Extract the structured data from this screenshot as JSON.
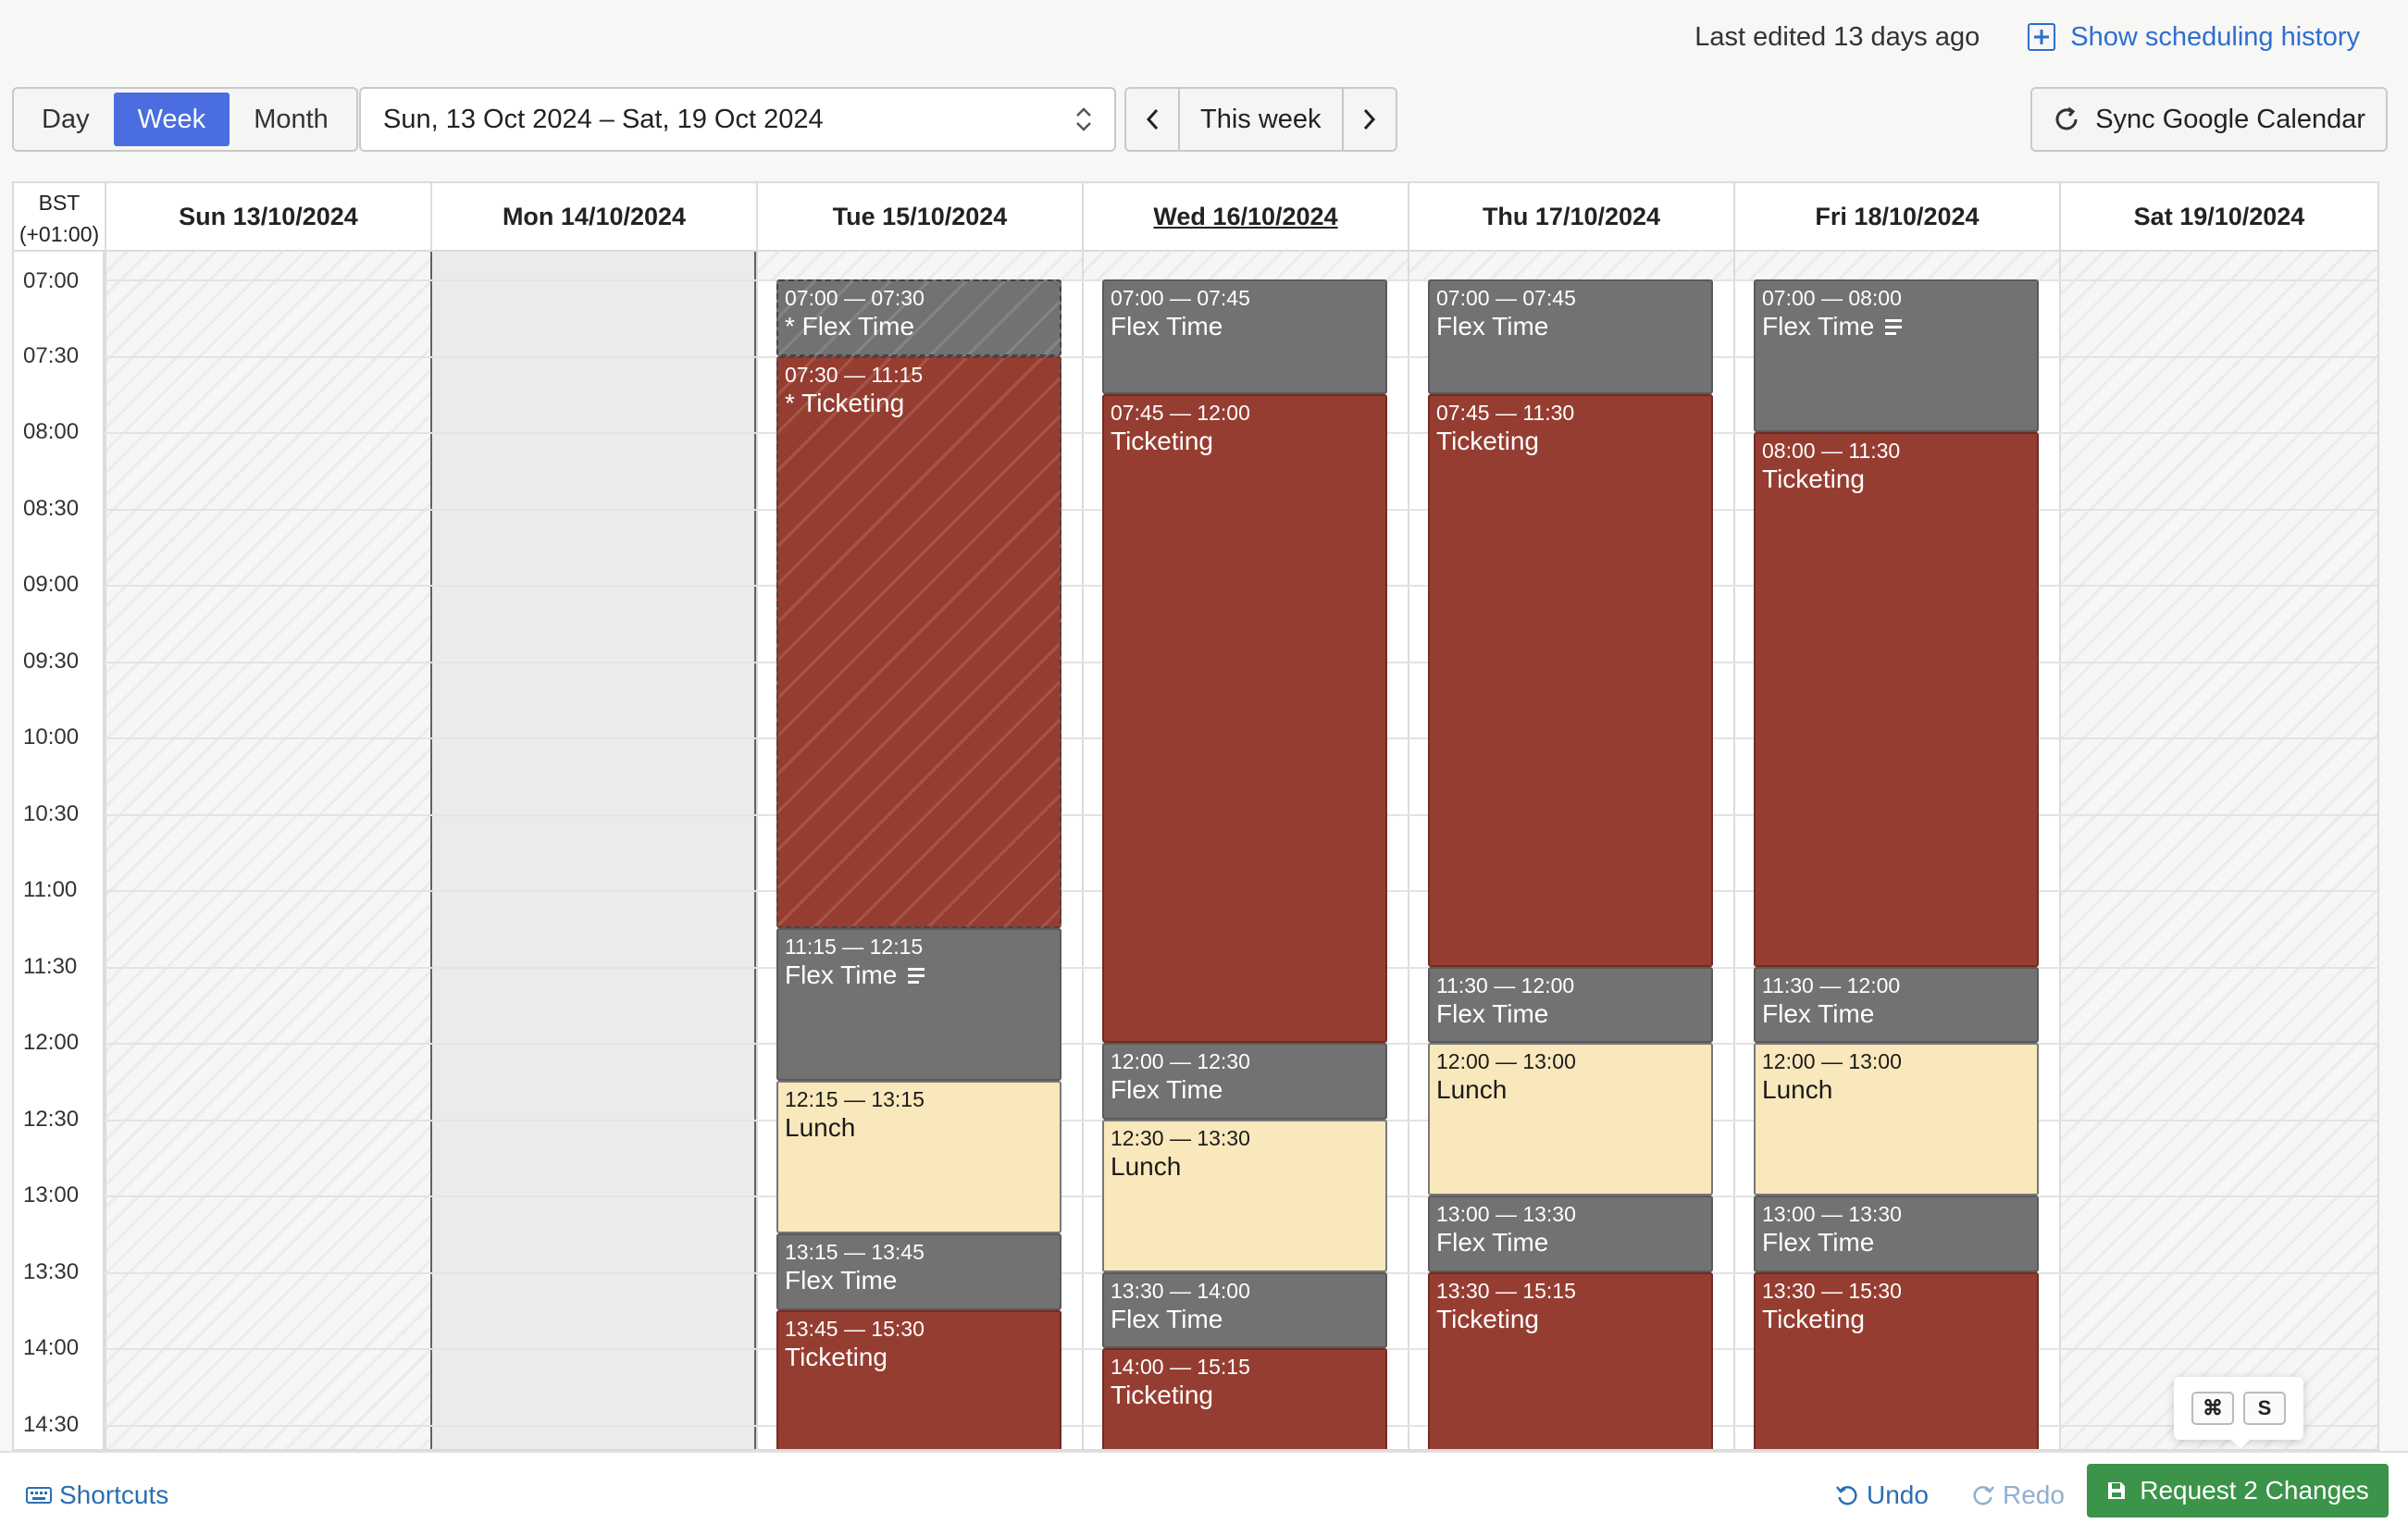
{
  "header": {
    "last_edited": "Last edited 13 days ago",
    "history_link": "Show scheduling history",
    "history_icon": "plus-square-icon"
  },
  "toolbar": {
    "views": [
      "Day",
      "Week",
      "Month"
    ],
    "active_view": "Week",
    "date_range": "Sun, 13 Oct 2024 – Sat, 19 Oct 2024",
    "this_week": "This week",
    "sync_label": "Sync Google Calendar"
  },
  "calendar": {
    "timezone_line1": "BST",
    "timezone_line2": "(+01:00)",
    "days": [
      {
        "label": "Sun 13/10/2024",
        "today": false,
        "state": "weekend"
      },
      {
        "label": "Mon 14/10/2024",
        "today": false,
        "state": "disabled"
      },
      {
        "label": "Tue 15/10/2024",
        "today": false,
        "state": "workday"
      },
      {
        "label": "Wed 16/10/2024",
        "today": true,
        "state": "workday"
      },
      {
        "label": "Thu 17/10/2024",
        "today": false,
        "state": "workday"
      },
      {
        "label": "Fri 18/10/2024",
        "today": false,
        "state": "workday"
      },
      {
        "label": "Sat 19/10/2024",
        "today": false,
        "state": "weekend"
      }
    ],
    "time_labels": [
      "07:00",
      "07:30",
      "08:00",
      "08:30",
      "09:00",
      "09:30",
      "10:00",
      "10:30",
      "11:00",
      "11:30",
      "12:00",
      "12:30",
      "13:00",
      "13:30",
      "14:00",
      "14:30"
    ],
    "events": [
      {
        "day": 2,
        "time": "07:00 — 07:30",
        "title": "* Flex Time",
        "type": "flex",
        "pending": true,
        "notes": false
      },
      {
        "day": 2,
        "time": "07:30 — 11:15",
        "title": "* Ticketing",
        "type": "ticket",
        "pending": true,
        "notes": false
      },
      {
        "day": 2,
        "time": "11:15 — 12:15",
        "title": "Flex Time",
        "type": "flex",
        "pending": false,
        "notes": true
      },
      {
        "day": 2,
        "time": "12:15 — 13:15",
        "title": "Lunch",
        "type": "lunch",
        "pending": false,
        "notes": false
      },
      {
        "day": 2,
        "time": "13:15 — 13:45",
        "title": "Flex Time",
        "type": "flex",
        "pending": false,
        "notes": false
      },
      {
        "day": 2,
        "time": "13:45 — 15:30",
        "title": "Ticketing",
        "type": "ticket",
        "pending": false,
        "notes": false
      },
      {
        "day": 3,
        "time": "07:00 — 07:45",
        "title": "Flex Time",
        "type": "flex",
        "pending": false,
        "notes": false
      },
      {
        "day": 3,
        "time": "07:45 — 12:00",
        "title": "Ticketing",
        "type": "ticket",
        "pending": false,
        "notes": false
      },
      {
        "day": 3,
        "time": "12:00 — 12:30",
        "title": "Flex Time",
        "type": "flex",
        "pending": false,
        "notes": false
      },
      {
        "day": 3,
        "time": "12:30 — 13:30",
        "title": "Lunch",
        "type": "lunch",
        "pending": false,
        "notes": false
      },
      {
        "day": 3,
        "time": "13:30 — 14:00",
        "title": "Flex Time",
        "type": "flex",
        "pending": false,
        "notes": false
      },
      {
        "day": 3,
        "time": "14:00 — 15:15",
        "title": "Ticketing",
        "type": "ticket",
        "pending": false,
        "notes": false
      },
      {
        "day": 4,
        "time": "07:00 — 07:45",
        "title": "Flex Time",
        "type": "flex",
        "pending": false,
        "notes": false
      },
      {
        "day": 4,
        "time": "07:45 — 11:30",
        "title": "Ticketing",
        "type": "ticket",
        "pending": false,
        "notes": false
      },
      {
        "day": 4,
        "time": "11:30 — 12:00",
        "title": "Flex Time",
        "type": "flex",
        "pending": false,
        "notes": false
      },
      {
        "day": 4,
        "time": "12:00 — 13:00",
        "title": "Lunch",
        "type": "lunch",
        "pending": false,
        "notes": false
      },
      {
        "day": 4,
        "time": "13:00 — 13:30",
        "title": "Flex Time",
        "type": "flex",
        "pending": false,
        "notes": false
      },
      {
        "day": 4,
        "time": "13:30 — 15:15",
        "title": "Ticketing",
        "type": "ticket",
        "pending": false,
        "notes": false
      },
      {
        "day": 5,
        "time": "07:00 — 08:00",
        "title": "Flex Time",
        "type": "flex",
        "pending": false,
        "notes": true
      },
      {
        "day": 5,
        "time": "08:00 — 11:30",
        "title": "Ticketing",
        "type": "ticket",
        "pending": false,
        "notes": false
      },
      {
        "day": 5,
        "time": "11:30 — 12:00",
        "title": "Flex Time",
        "type": "flex",
        "pending": false,
        "notes": false
      },
      {
        "day": 5,
        "time": "12:00 — 13:00",
        "title": "Lunch",
        "type": "lunch",
        "pending": false,
        "notes": false
      },
      {
        "day": 5,
        "time": "13:00 — 13:30",
        "title": "Flex Time",
        "type": "flex",
        "pending": false,
        "notes": false
      },
      {
        "day": 5,
        "time": "13:30 — 15:30",
        "title": "Ticketing",
        "type": "ticket",
        "pending": false,
        "notes": false
      }
    ],
    "colors": {
      "flex": "#727272",
      "ticketing": "#963d31",
      "lunch": "#f9e8bb",
      "active_view": "#4a6ee0",
      "request_button": "#3b9449"
    }
  },
  "footer": {
    "shortcuts": "Shortcuts",
    "undo": "Undo",
    "redo": "Redo",
    "request": "Request 2 Changes",
    "kbd_cmd": "⌘",
    "kbd_key": "S"
  }
}
